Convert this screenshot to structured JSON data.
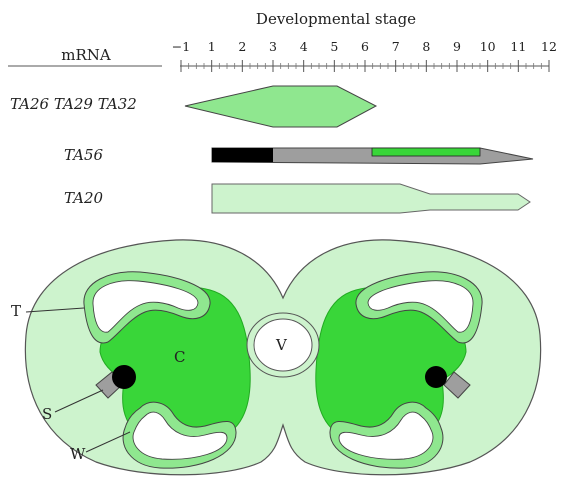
{
  "timeline": {
    "axis_title": "Developmental stage",
    "column_header": "mRNA",
    "tick_labels": [
      "−1",
      "1",
      "2",
      "3",
      "4",
      "5",
      "6",
      "7",
      "8",
      "9",
      "10",
      "11",
      "12"
    ]
  },
  "genes": [
    {
      "label": "TA26 TA29 TA32",
      "expression_stage_start": 1,
      "expression_stage_end": 6.3
    },
    {
      "label": "TA56",
      "expression_stage_start": 1,
      "expression_stage_end": 11.6
    },
    {
      "label": "TA20",
      "expression_stage_start": 1,
      "expression_stage_end": 11.6
    }
  ],
  "anther_labels": {
    "tapetum": "T",
    "connective": "C",
    "vascular": "V",
    "stomium": "S",
    "wall": "W"
  },
  "colors": {
    "bright_green": "#39d639",
    "light_green": "#cdf3cd",
    "mid_green": "#8fe78f",
    "gray": "#9e9e9e",
    "black": "#000000"
  }
}
